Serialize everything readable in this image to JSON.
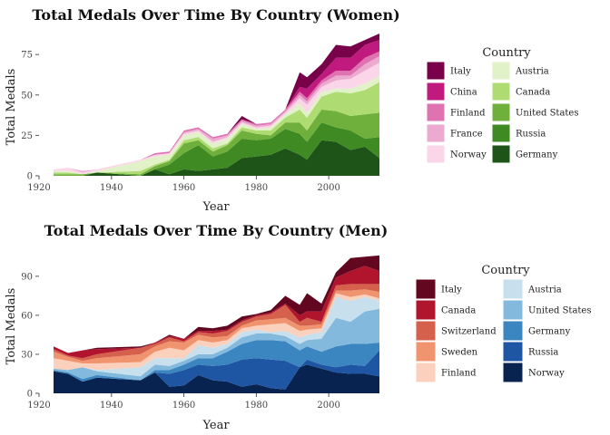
{
  "chart_data": [
    {
      "type": "area",
      "stacked": true,
      "title": "Total Medals Over Time By Country (Women)",
      "xlabel": "Year",
      "ylabel": "Total Medals",
      "xlim": [
        1920,
        2014
      ],
      "ylim": [
        0,
        88
      ],
      "xticks": [
        1920,
        1940,
        1960,
        1980,
        2000
      ],
      "yticks": [
        0,
        25,
        50,
        75
      ],
      "legend_title": "Country",
      "legend_placement": "right",
      "grid": false,
      "x": [
        1924,
        1928,
        1932,
        1936,
        1948,
        1952,
        1956,
        1960,
        1964,
        1968,
        1972,
        1976,
        1980,
        1984,
        1988,
        1992,
        1994,
        1998,
        2002,
        2006,
        2010,
        2014
      ],
      "series": [
        {
          "name": "Germany",
          "color": "#1f5418",
          "values": [
            0,
            0,
            0,
            2,
            0,
            4,
            1,
            4,
            3,
            4,
            5,
            11,
            12,
            13,
            17,
            13,
            10,
            22,
            21,
            16,
            18,
            11
          ]
        },
        {
          "name": "Russia",
          "color": "#3f8a22",
          "values": [
            0,
            0,
            0,
            0,
            0,
            0,
            6,
            10,
            16,
            8,
            10,
            12,
            10,
            10,
            12,
            13,
            11,
            11,
            9,
            12,
            5,
            13
          ]
        },
        {
          "name": "United States",
          "color": "#6fb03d",
          "values": [
            1,
            1,
            1,
            0,
            1,
            2,
            2,
            6,
            3,
            3,
            4,
            5,
            4,
            2,
            4,
            7,
            7,
            8,
            10,
            9,
            15,
            15
          ]
        },
        {
          "name": "Canada",
          "color": "#aedc72",
          "values": [
            1,
            1,
            0,
            0,
            2,
            1,
            1,
            2,
            2,
            2,
            1,
            2,
            2,
            3,
            3,
            8,
            8,
            8,
            12,
            14,
            15,
            19
          ]
        },
        {
          "name": "Austria",
          "color": "#e2f2c8",
          "values": [
            1,
            1,
            0,
            1,
            6,
            5,
            3,
            3,
            3,
            3,
            3,
            2,
            1,
            2,
            2,
            4,
            3,
            3,
            2,
            3,
            4,
            4
          ]
        },
        {
          "name": "Norway",
          "color": "#fbd5e8",
          "values": [
            1,
            2,
            1,
            1,
            1,
            1,
            1,
            1,
            1,
            1,
            1,
            1,
            1,
            1,
            1,
            3,
            5,
            3,
            5,
            6,
            8,
            8
          ]
        },
        {
          "name": "France",
          "color": "#ecaad0",
          "values": [
            0,
            0,
            1,
            0,
            0,
            0,
            0,
            1,
            1,
            2,
            1,
            1,
            1,
            1,
            1,
            2,
            2,
            2,
            3,
            2,
            4,
            4
          ]
        },
        {
          "name": "Finland",
          "color": "#df72b0",
          "values": [
            0,
            0,
            0,
            0,
            0,
            1,
            1,
            1,
            1,
            1,
            1,
            1,
            1,
            1,
            1,
            2,
            2,
            2,
            3,
            3,
            4,
            3
          ]
        },
        {
          "name": "China",
          "color": "#c01a7e",
          "values": [
            0,
            0,
            0,
            0,
            0,
            0,
            0,
            0,
            0,
            0,
            0,
            0,
            0,
            0,
            0,
            3,
            6,
            4,
            8,
            8,
            8,
            7
          ]
        },
        {
          "name": "Italy",
          "color": "#78014a",
          "values": [
            0,
            0,
            0,
            0,
            0,
            0,
            0,
            0,
            0,
            0,
            0,
            2,
            0,
            0,
            0,
            9,
            7,
            6,
            8,
            7,
            3,
            4
          ]
        }
      ]
    },
    {
      "type": "area",
      "stacked": true,
      "title": "Total Medals Over Time By Country (Men)",
      "xlabel": "Year",
      "ylabel": "Total Medals",
      "xlim": [
        1920,
        2014
      ],
      "ylim": [
        0,
        108
      ],
      "xticks": [
        1920,
        1940,
        1960,
        1980,
        2000
      ],
      "yticks": [
        0,
        30,
        60,
        90
      ],
      "legend_title": "Country",
      "legend_placement": "right",
      "grid": false,
      "x": [
        1924,
        1928,
        1932,
        1936,
        1948,
        1952,
        1956,
        1960,
        1964,
        1968,
        1972,
        1976,
        1980,
        1984,
        1988,
        1992,
        1994,
        1998,
        2002,
        2006,
        2010,
        2014
      ],
      "series": [
        {
          "name": "Norway",
          "color": "#08234f",
          "values": [
            17,
            15,
            9,
            12,
            10,
            16,
            5,
            6,
            14,
            10,
            9,
            5,
            7,
            4,
            3,
            20,
            22,
            19,
            16,
            15,
            15,
            13
          ]
        },
        {
          "name": "Russia",
          "color": "#1f56a4",
          "values": [
            0,
            0,
            0,
            0,
            0,
            0,
            10,
            12,
            8,
            11,
            13,
            21,
            20,
            22,
            22,
            0,
            4,
            3,
            4,
            7,
            6,
            20
          ]
        },
        {
          "name": "Germany",
          "color": "#3b85c1",
          "values": [
            1,
            1,
            2,
            2,
            0,
            2,
            3,
            4,
            5,
            6,
            10,
            12,
            14,
            15,
            15,
            13,
            10,
            10,
            16,
            16,
            17,
            6
          ]
        },
        {
          "name": "United States",
          "color": "#82b9dc",
          "values": [
            1,
            2,
            9,
            3,
            3,
            4,
            3,
            3,
            3,
            3,
            3,
            5,
            5,
            5,
            4,
            5,
            5,
            10,
            22,
            17,
            25,
            26
          ]
        },
        {
          "name": "Austria",
          "color": "#c8e0ee",
          "values": [
            0,
            0,
            0,
            1,
            7,
            5,
            6,
            2,
            7,
            5,
            3,
            4,
            3,
            1,
            4,
            5,
            4,
            5,
            16,
            16,
            11,
            6
          ]
        },
        {
          "name": "Finland",
          "color": "#fbd0bd",
          "values": [
            8,
            7,
            3,
            5,
            4,
            5,
            8,
            6,
            4,
            4,
            3,
            3,
            3,
            6,
            6,
            5,
            4,
            3,
            3,
            3,
            2,
            2
          ]
        },
        {
          "name": "Sweden",
          "color": "#f0946f",
          "values": [
            5,
            3,
            2,
            4,
            6,
            4,
            5,
            6,
            4,
            4,
            3,
            2,
            4,
            4,
            4,
            4,
            3,
            3,
            2,
            5,
            4,
            5
          ]
        },
        {
          "name": "Switzerland",
          "color": "#d5604b",
          "values": [
            2,
            1,
            2,
            3,
            5,
            2,
            3,
            1,
            2,
            3,
            4,
            3,
            3,
            4,
            10,
            3,
            6,
            2,
            4,
            5,
            4,
            6
          ]
        },
        {
          "name": "Canada",
          "color": "#b1152d",
          "values": [
            2,
            2,
            6,
            4,
            0,
            1,
            1,
            2,
            1,
            2,
            1,
            1,
            1,
            1,
            1,
            5,
            5,
            8,
            6,
            10,
            14,
            10
          ]
        },
        {
          "name": "Italy",
          "color": "#62071f",
          "values": [
            0,
            0,
            0,
            1,
            1,
            0,
            1,
            0,
            3,
            2,
            3,
            3,
            1,
            2,
            6,
            8,
            14,
            6,
            4,
            10,
            7,
            12
          ]
        }
      ]
    }
  ]
}
